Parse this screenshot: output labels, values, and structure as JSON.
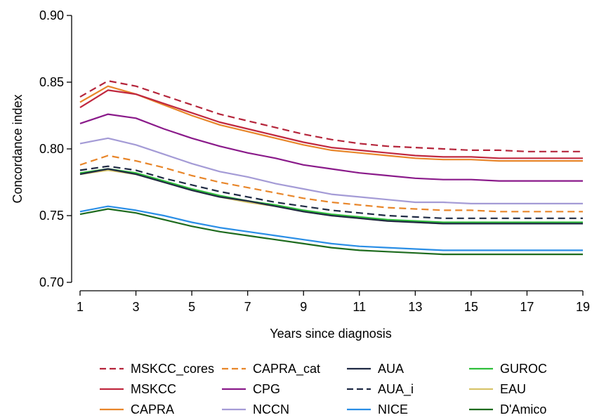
{
  "chart_data": {
    "type": "line",
    "title": "",
    "xlabel": "Years since diagnosis",
    "ylabel": "Concordance index",
    "xlim": [
      1,
      19
    ],
    "ylim": [
      0.7,
      0.9
    ],
    "xticks": [
      "1",
      "3",
      "5",
      "7",
      "9",
      "11",
      "13",
      "15",
      "17",
      "19"
    ],
    "yticks": [
      "0.70",
      "0.75",
      "0.80",
      "0.85",
      "0.90"
    ],
    "grid": false,
    "legend_position": "bottom",
    "x": [
      1,
      2,
      3,
      4,
      5,
      6,
      7,
      8,
      9,
      10,
      11,
      12,
      13,
      14,
      15,
      16,
      17,
      18,
      19
    ],
    "series": [
      {
        "name": "MSKCC_cores",
        "color": "#b5253b",
        "dash": "dashed",
        "values": [
          0.839,
          0.851,
          0.847,
          0.84,
          0.833,
          0.826,
          0.821,
          0.816,
          0.811,
          0.807,
          0.804,
          0.802,
          0.801,
          0.8,
          0.799,
          0.799,
          0.798,
          0.798,
          0.798
        ]
      },
      {
        "name": "MSKCC",
        "color": "#c0283f",
        "dash": "solid",
        "values": [
          0.831,
          0.844,
          0.841,
          0.834,
          0.827,
          0.82,
          0.815,
          0.81,
          0.805,
          0.801,
          0.799,
          0.797,
          0.795,
          0.794,
          0.794,
          0.793,
          0.793,
          0.793,
          0.793
        ]
      },
      {
        "name": "CAPRA",
        "color": "#e8862a",
        "dash": "solid",
        "values": [
          0.835,
          0.847,
          0.841,
          0.833,
          0.825,
          0.818,
          0.813,
          0.808,
          0.803,
          0.799,
          0.797,
          0.795,
          0.793,
          0.792,
          0.792,
          0.791,
          0.791,
          0.791,
          0.791
        ]
      },
      {
        "name": "CAPRA_cat",
        "color": "#e8862a",
        "dash": "dashed",
        "values": [
          0.788,
          0.795,
          0.791,
          0.786,
          0.78,
          0.775,
          0.771,
          0.767,
          0.763,
          0.76,
          0.758,
          0.756,
          0.755,
          0.754,
          0.754,
          0.753,
          0.753,
          0.753,
          0.753
        ]
      },
      {
        "name": "CPG",
        "color": "#8a1a8a",
        "dash": "solid",
        "values": [
          0.819,
          0.826,
          0.823,
          0.815,
          0.808,
          0.802,
          0.797,
          0.793,
          0.788,
          0.785,
          0.782,
          0.78,
          0.778,
          0.777,
          0.777,
          0.776,
          0.776,
          0.776,
          0.776
        ]
      },
      {
        "name": "NCCN",
        "color": "#a49bd6",
        "dash": "solid",
        "values": [
          0.804,
          0.808,
          0.803,
          0.796,
          0.789,
          0.783,
          0.779,
          0.774,
          0.77,
          0.766,
          0.764,
          0.762,
          0.76,
          0.76,
          0.759,
          0.759,
          0.759,
          0.759,
          0.759
        ]
      },
      {
        "name": "AUA",
        "color": "#1f2a44",
        "dash": "solid",
        "values": [
          0.781,
          0.785,
          0.781,
          0.775,
          0.769,
          0.764,
          0.761,
          0.757,
          0.753,
          0.75,
          0.748,
          0.746,
          0.745,
          0.744,
          0.744,
          0.744,
          0.744,
          0.744,
          0.744
        ]
      },
      {
        "name": "AUA_i",
        "color": "#1f2a44",
        "dash": "dashed",
        "values": [
          0.784,
          0.787,
          0.784,
          0.778,
          0.773,
          0.768,
          0.764,
          0.76,
          0.757,
          0.754,
          0.752,
          0.75,
          0.749,
          0.748,
          0.748,
          0.748,
          0.748,
          0.748,
          0.748
        ]
      },
      {
        "name": "NICE",
        "color": "#2a8ee6",
        "dash": "solid",
        "values": [
          0.753,
          0.757,
          0.754,
          0.75,
          0.745,
          0.741,
          0.738,
          0.735,
          0.732,
          0.729,
          0.727,
          0.726,
          0.725,
          0.724,
          0.724,
          0.724,
          0.724,
          0.724,
          0.724
        ]
      },
      {
        "name": "GUROC",
        "color": "#2fbf3a",
        "dash": "solid",
        "values": [
          0.782,
          0.785,
          0.782,
          0.776,
          0.77,
          0.765,
          0.761,
          0.758,
          0.754,
          0.751,
          0.749,
          0.747,
          0.746,
          0.745,
          0.745,
          0.745,
          0.745,
          0.745,
          0.745
        ]
      },
      {
        "name": "EAU",
        "color": "#d8c46a",
        "dash": "solid",
        "values": [
          0.781,
          0.784,
          0.781,
          0.775,
          0.769,
          0.764,
          0.76,
          0.757,
          0.753,
          0.75,
          0.748,
          0.746,
          0.745,
          0.744,
          0.744,
          0.744,
          0.744,
          0.744,
          0.744
        ]
      },
      {
        "name": "D'Amico",
        "color": "#1e6b1e",
        "dash": "solid",
        "values": [
          0.751,
          0.755,
          0.752,
          0.747,
          0.742,
          0.738,
          0.735,
          0.732,
          0.729,
          0.726,
          0.724,
          0.723,
          0.722,
          0.721,
          0.721,
          0.721,
          0.721,
          0.721,
          0.721
        ]
      }
    ],
    "legend_order": [
      "MSKCC_cores",
      "CAPRA_cat",
      "AUA",
      "GUROC",
      "MSKCC",
      "CPG",
      "AUA_i",
      "EAU",
      "CAPRA",
      "NCCN",
      "NICE",
      "D'Amico"
    ]
  }
}
